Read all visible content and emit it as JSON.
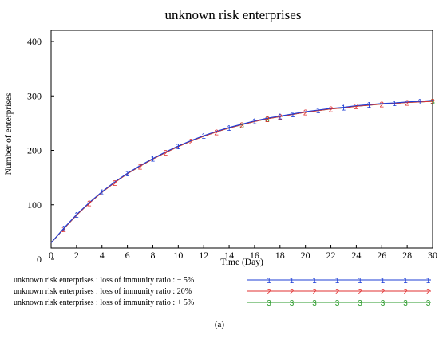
{
  "chart_data": {
    "type": "line",
    "title": "unknown risk enterprises",
    "xlabel": "Time (Day)",
    "ylabel": "Number of enterprises",
    "xlim": [
      0,
      30
    ],
    "ylim": [
      0,
      400
    ],
    "x_ticks": [
      "0",
      "2",
      "4",
      "6",
      "8",
      "10",
      "12",
      "14",
      "16",
      "18",
      "20",
      "22",
      "24",
      "26",
      "28",
      "30"
    ],
    "y_ticks": [
      "0",
      "100",
      "200",
      "300",
      "400"
    ],
    "grid": false,
    "legend_placement": "bottom",
    "x": [
      0,
      1,
      2,
      3,
      4,
      5,
      6,
      7,
      8,
      9,
      10,
      11,
      12,
      13,
      14,
      15,
      16,
      17,
      18,
      19,
      20,
      21,
      22,
      23,
      24,
      25,
      26,
      27,
      28,
      29,
      30
    ],
    "series": [
      {
        "name": "unknown risk enterprises : loss of immunity ratio : − 5%",
        "marker": "1",
        "color": "#1f3fd6",
        "values": [
          30,
          57,
          82,
          104,
          124,
          142,
          158,
          172,
          185,
          197,
          208,
          218,
          227,
          235,
          242,
          248,
          254,
          259,
          263,
          267,
          271,
          274,
          277,
          279,
          282,
          284,
          286,
          287,
          289,
          290,
          292
        ],
        "marker_x": [
          1,
          2,
          4,
          6,
          8,
          10,
          12,
          14,
          16,
          18,
          19,
          21,
          23,
          25,
          27,
          29
        ]
      },
      {
        "name": "unknown risk enterprises : loss of immunity ratio : 20%",
        "marker": "2",
        "color": "#e03030",
        "values": [
          30,
          56,
          81,
          103,
          123,
          141,
          157,
          171,
          184,
          196,
          207,
          217,
          226,
          234,
          241,
          247,
          253,
          258,
          262,
          266,
          270,
          273,
          276,
          278,
          281,
          283,
          285,
          286,
          288,
          289,
          290
        ],
        "marker_x": [
          1,
          3,
          5,
          7,
          9,
          11,
          13,
          15,
          17,
          18,
          20,
          22,
          24,
          26,
          28,
          30
        ]
      },
      {
        "name": "unknown risk enterprises : loss of immunity ratio : + 5%",
        "marker": "3",
        "color": "#2a9a2a",
        "values": [
          30,
          56,
          81,
          103,
          123,
          141,
          157,
          171,
          184,
          196,
          207,
          217,
          226,
          234,
          241,
          247,
          253,
          258,
          262,
          266,
          270,
          273,
          276,
          278,
          281,
          283,
          285,
          286,
          288,
          289,
          290
        ],
        "marker_x": [
          15,
          17,
          30
        ]
      }
    ]
  },
  "caption": "(a)"
}
